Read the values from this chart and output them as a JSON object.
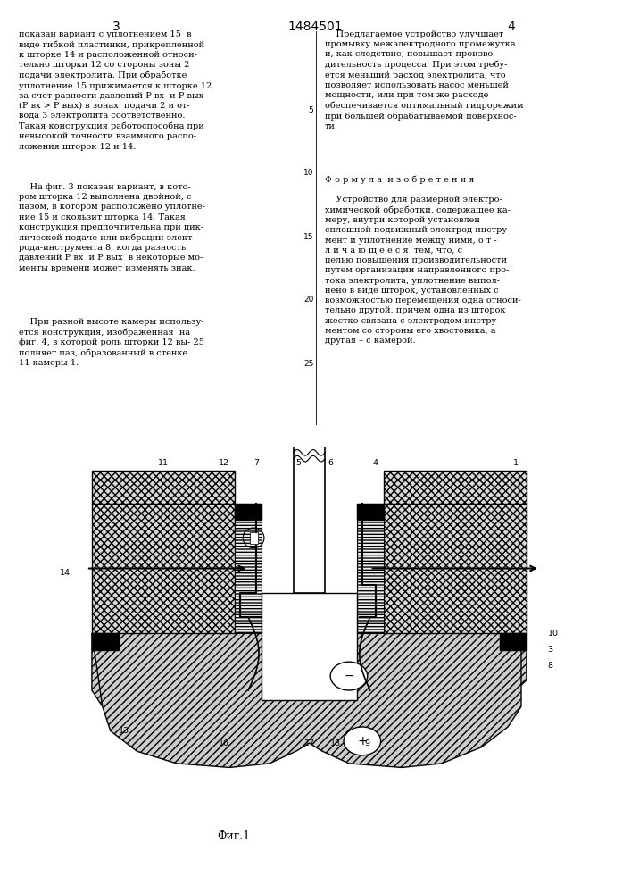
{
  "title": "1484501",
  "page_left": "3",
  "page_right": "4",
  "fig_label": "Фиг.1",
  "text_left_p1": "показан вариант с уплотнением 15  в\nвиде гибкой пластинки, прикрепленной\nк шторке 14 и расположенной относи-\nтельно шторки 12 со стороны зоны 2\nподачи электролита. При обработке\nуплотнение 15 прижимается к шторке 12\nза счет разности давлений Р вх  и Р вых\n(Р вх > Р вых) в зонах  подачи 2 и от-\nвода 3 электролита соответственно.\nТакая конструкция работоспособна при\nневысокой точности взаимного распо-\nложения шторок 12 и 14.",
  "text_left_p2": "    На фиг. 3 показан вариант, в кото-\nром шторка 12 выполнена двойной, с\nпазом, в котором расположено уплотне-\nние 15 и скользит шторка 14. Такая\nконструкция предпочтительна при цик-\nлической подаче или вибрации элект-\nрода-инструмента 8, когда разность\nдавлений Р вх  и Р вых  в некоторые мо-\nменты времени может изменять знак.",
  "text_left_p3": "    При разной высоте камеры использу-\nется конструкция, изображенная  на\nфиг. 4, в которой роль шторки 12 вы- 25\nполняет паз, образованный в стенке\n11 камеры 1.",
  "text_right_p1": "    Предлагаемое устройство улучшает\nпромывку межэлектродного промежутка\nи, как следствие, повышает произво-\nдительность процесса. При этом требу-\nется меньший расход электролита, что\nпозволяет использовать насос меньшей\nмощности, или при том же расходе\nобеспечивается оптимальный гидрорежим\nпри большей обрабатываемой поверхнос-\nти.",
  "text_formula": "Ф о р м у л а  и з о б р е т е н и я",
  "text_claim": "    Устройство для размерной электро-\nхимической обработки, содержащее ка-\nмеру, внутри которой установлен\nсплошной подвижный электрод-инстру-\nмент и уплотнение между ними, о т -\nл и ч а ю щ е е с я  тем, что, с\nцелью повышения производительности\nпутем организации направленного про-\nтока электролита, уплотнение выпол-\nнено в виде шторок, установленных с\nвозможностью перемещения одна относи-\nтельно другой, причем одна из шторок\nжестко связана с электродом-инстру-\nментом со стороны его хвостовика, а\nдругая – с камерой.",
  "bg_color": "#ffffff"
}
